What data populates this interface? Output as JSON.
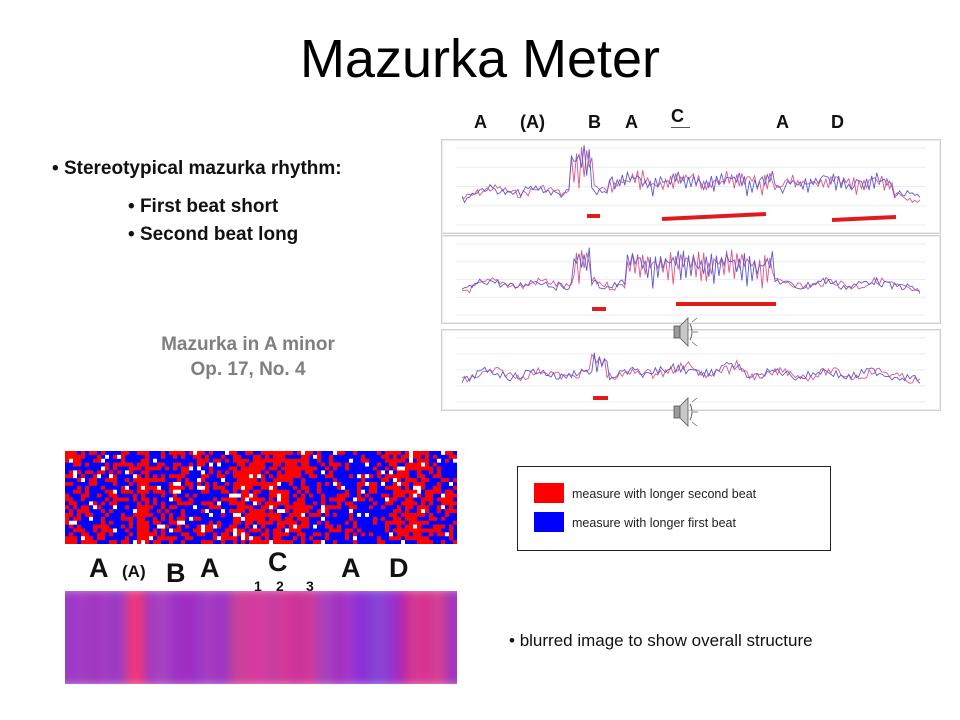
{
  "title": "Mazurka Meter",
  "top_section_labels": [
    "A",
    "(A)",
    "B",
    "A",
    "C",
    "A",
    "D"
  ],
  "bullets": {
    "main": "Stereotypical mazurka rhythm:",
    "sub1": "First beat short",
    "sub2": "Second beat long"
  },
  "piece": {
    "line1": "Mazurka in A minor",
    "line2": "Op. 17, No. 4"
  },
  "icons": [
    "speaker-icon",
    "speaker-icon"
  ],
  "colors": {
    "longer_second_beat": "#ff0000",
    "longer_first_beat": "#0000ff",
    "trace_red": "#e0558a",
    "trace_blue": "#5a5ad8"
  },
  "legend": {
    "red_label": "measure with longer second beat",
    "blue_label": "measure with longer first beat"
  },
  "bottom_section_labels": {
    "a1": "A",
    "a_paren": "(A)",
    "b": "B",
    "a2": "A",
    "c": "C",
    "c_sub": [
      "1",
      "2",
      "3"
    ],
    "a3": "A",
    "d": "D"
  },
  "blur_note": "blurred image to show overall structure"
}
